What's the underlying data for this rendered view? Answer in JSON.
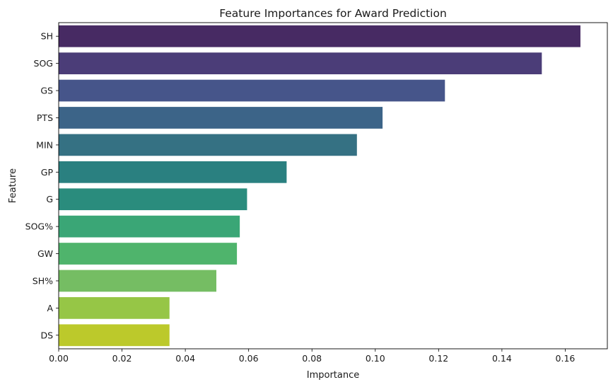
{
  "chart_data": {
    "type": "bar",
    "orientation": "horizontal",
    "title": "Feature Importances for Award Prediction",
    "xlabel": "Importance",
    "ylabel": "Feature",
    "xlim": [
      0,
      0.1733
    ],
    "xticks": [
      "0.00",
      "0.02",
      "0.04",
      "0.06",
      "0.08",
      "0.10",
      "0.12",
      "0.14",
      "0.16"
    ],
    "grid": false,
    "legend": "none",
    "palette": "viridis",
    "categories": [
      "SH",
      "SOG",
      "GS",
      "PTS",
      "MIN",
      "GP",
      "G",
      "SOG%",
      "GW",
      "SH%",
      "A",
      "DS"
    ],
    "values": [
      0.1648,
      0.1526,
      0.122,
      0.1023,
      0.0942,
      0.072,
      0.0595,
      0.0572,
      0.0563,
      0.0498,
      0.035,
      0.035
    ],
    "colors": [
      "#472a63",
      "#4b3d78",
      "#46558a",
      "#3c6488",
      "#357183",
      "#2a8080",
      "#2a8c7d",
      "#3aa676",
      "#4fb46c",
      "#75bd63",
      "#96c646",
      "#bcc92b"
    ]
  }
}
